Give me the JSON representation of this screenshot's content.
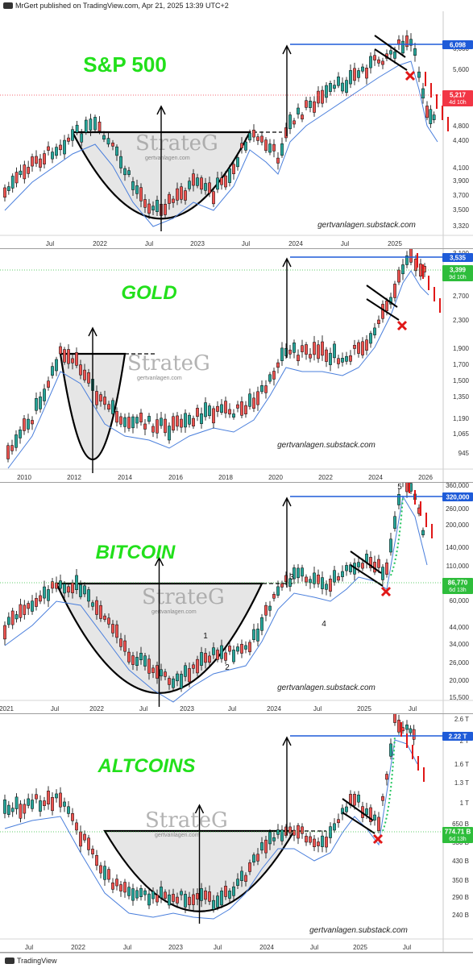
{
  "header": {
    "text": "MrGert published on TradingView.com, Apr 21, 2025 13:39 UTC+2"
  },
  "footer": {
    "brand": "TradingView"
  },
  "chart_data": [
    {
      "id": "sp500",
      "type": "candlestick",
      "title": "S&P 500",
      "credit": "gertvanlagen.substack.com",
      "watermark": "StrateG",
      "watermark_sub": "gertvanlagen.com",
      "xticks": [
        "Jul",
        "2022",
        "Jul",
        "2023",
        "Jul",
        "2024",
        "Jul",
        "2025"
      ],
      "yticks": [
        "6,000",
        "5,600",
        "4,800",
        "4,400",
        "4,100",
        "3,900",
        "3,700",
        "3,500",
        "3,320"
      ],
      "price_tags": [
        {
          "value": "6,098",
          "color": "#1e5bd8",
          "sub": ""
        },
        {
          "value": "5,217",
          "color": "#f23645",
          "sub": "4d 10h"
        }
      ],
      "pattern": "cup-and-handle",
      "markers": [
        "x"
      ],
      "waves": [],
      "colors": {
        "up": "#26a69a",
        "down": "#ef5350",
        "ma": "#4a7fdc",
        "target": "#1e5bd8"
      }
    },
    {
      "id": "gold",
      "type": "candlestick",
      "title": "GOLD",
      "credit": "gertvanlagen.substack.com",
      "watermark": "StrateG",
      "watermark_sub": "gertvanlagen.com",
      "xticks": [
        "2010",
        "2012",
        "2014",
        "2016",
        "2018",
        "2020",
        "2022",
        "2024",
        "2026"
      ],
      "yticks": [
        "3,100",
        "2,700",
        "2,300",
        "1,900",
        "1,700",
        "1,500",
        "1,350",
        "1,190",
        "1,065",
        "945"
      ],
      "price_tags": [
        {
          "value": "3,535",
          "color": "#1e5bd8",
          "sub": ""
        },
        {
          "value": "3,399",
          "color": "#2ebd3b",
          "sub": "9d 10h"
        }
      ],
      "pattern": "cup-and-handle",
      "markers": [
        "x"
      ],
      "waves": [],
      "colors": {
        "up": "#26a69a",
        "down": "#ef5350",
        "ma": "#4a7fdc",
        "target": "#1e5bd8"
      }
    },
    {
      "id": "bitcoin",
      "type": "candlestick",
      "title": "BITCOIN",
      "credit": "gertvanlagen.substack.com",
      "watermark": "StrateG",
      "watermark_sub": "gertvanlagen.com",
      "xticks": [
        "2021",
        "Jul",
        "2022",
        "Jul",
        "2023",
        "Jul",
        "2024",
        "Jul",
        "2025",
        "Jul"
      ],
      "yticks": [
        "360,000",
        "260,000",
        "200,000",
        "140,000",
        "110,000",
        "60,000",
        "44,000",
        "34,000",
        "26,000",
        "20,000",
        "15,500"
      ],
      "price_tags": [
        {
          "value": "320,000",
          "color": "#1e5bd8",
          "sub": ""
        },
        {
          "value": "86,770",
          "color": "#2ebd3b",
          "sub": "6d 13h"
        }
      ],
      "pattern": "cup-and-handle",
      "markers": [
        "x"
      ],
      "waves": [
        "1",
        "2",
        "3",
        "4",
        "5"
      ],
      "colors": {
        "up": "#26a69a",
        "down": "#ef5350",
        "ma": "#4a7fdc",
        "target": "#1e5bd8"
      }
    },
    {
      "id": "altcoins",
      "type": "candlestick",
      "title": "ALTCOINS",
      "credit": "gertvanlagen.substack.com",
      "watermark": "StrateG",
      "watermark_sub": "gertvanlagen.com",
      "xticks": [
        "Jul",
        "2022",
        "Jul",
        "2023",
        "Jul",
        "2024",
        "Jul",
        "2025",
        "Jul"
      ],
      "yticks": [
        "2.6 T",
        "2 T",
        "1.6 T",
        "1.3 T",
        "1 T",
        "650 B",
        "530 B",
        "430 B",
        "350 B",
        "290 B",
        "240 B"
      ],
      "price_tags": [
        {
          "value": "2.22 T",
          "color": "#1e5bd8",
          "sub": ""
        },
        {
          "value": "774.71 B",
          "color": "#2ebd3b",
          "sub": "6d 13h"
        }
      ],
      "pattern": "cup-and-handle",
      "markers": [
        "x"
      ],
      "waves": [],
      "colors": {
        "up": "#26a69a",
        "down": "#ef5350",
        "ma": "#4a7fdc",
        "target": "#1e5bd8"
      }
    }
  ]
}
